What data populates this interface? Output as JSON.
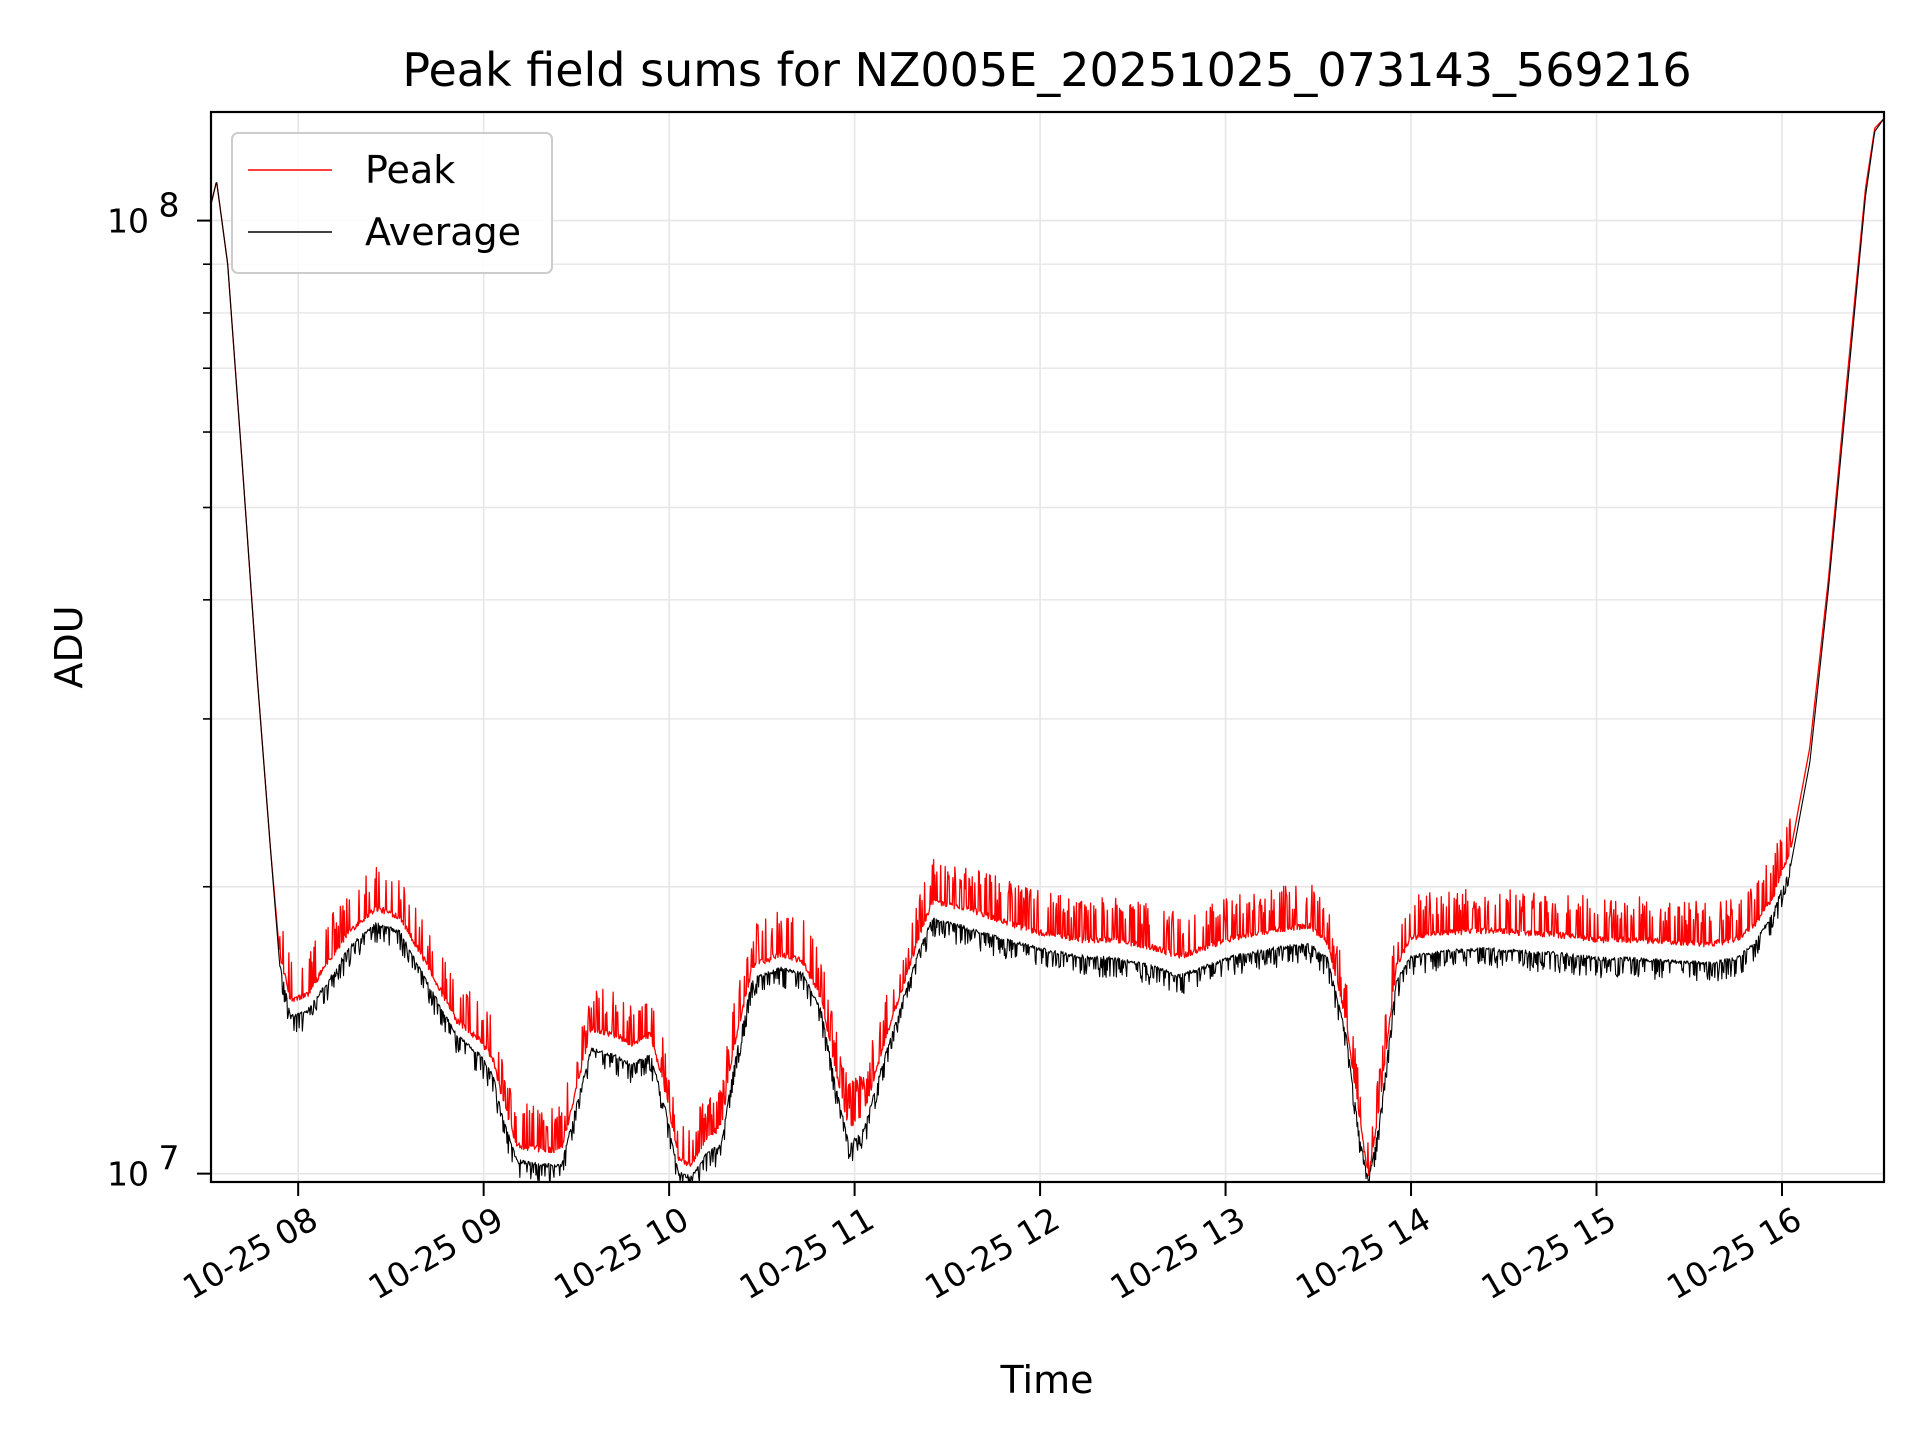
{
  "chart_data": {
    "type": "line",
    "title": "Peak field sums for NZ005E_20251025_073143_569216",
    "xlabel": "Time",
    "ylabel": "ADU",
    "yscale": "log",
    "ylim": [
      9800000,
      130000000
    ],
    "xlim_hours": [
      7.53,
      16.55
    ],
    "grid": true,
    "legend_position": "upper-left",
    "x_ticks": [
      {
        "label": "10-25 08",
        "hour": 8
      },
      {
        "label": "10-25 09",
        "hour": 9
      },
      {
        "label": "10-25 10",
        "hour": 10
      },
      {
        "label": "10-25 11",
        "hour": 11
      },
      {
        "label": "10-25 12",
        "hour": 12
      },
      {
        "label": "10-25 13",
        "hour": 13
      },
      {
        "label": "10-25 14",
        "hour": 14
      },
      {
        "label": "10-25 15",
        "hour": 15
      },
      {
        "label": "10-25 16",
        "hour": 16
      }
    ],
    "y_ticks": [
      {
        "base": "10",
        "exp": "7",
        "value": 10000000
      },
      {
        "base": "10",
        "exp": "8",
        "value": 100000000
      }
    ],
    "series": [
      {
        "name": "Peak",
        "color": "#ff0000",
        "noise_ratio": 1.11,
        "points": [
          [
            7.53,
            104000000
          ],
          [
            7.56,
            110000000
          ],
          [
            7.62,
            90000000
          ],
          [
            7.7,
            55000000
          ],
          [
            7.78,
            33000000
          ],
          [
            7.85,
            22000000
          ],
          [
            7.9,
            17000000
          ],
          [
            7.96,
            15200000
          ],
          [
            8.05,
            15400000
          ],
          [
            8.15,
            16600000
          ],
          [
            8.28,
            18000000
          ],
          [
            8.42,
            19000000
          ],
          [
            8.55,
            18600000
          ],
          [
            8.7,
            16500000
          ],
          [
            8.85,
            14500000
          ],
          [
            8.98,
            13800000
          ],
          [
            9.05,
            13200000
          ],
          [
            9.1,
            12000000
          ],
          [
            9.18,
            10700000
          ],
          [
            9.32,
            10600000
          ],
          [
            9.42,
            10600000
          ],
          [
            9.5,
            12300000
          ],
          [
            9.58,
            14200000
          ],
          [
            9.7,
            14000000
          ],
          [
            9.8,
            13700000
          ],
          [
            9.9,
            14000000
          ],
          [
            9.98,
            12200000
          ],
          [
            10.05,
            10400000
          ],
          [
            10.12,
            10200000
          ],
          [
            10.2,
            10900000
          ],
          [
            10.28,
            11200000
          ],
          [
            10.35,
            13600000
          ],
          [
            10.45,
            16500000
          ],
          [
            10.6,
            17000000
          ],
          [
            10.72,
            16700000
          ],
          [
            10.82,
            15300000
          ],
          [
            10.9,
            12800000
          ],
          [
            10.97,
            11200000
          ],
          [
            11.05,
            11600000
          ],
          [
            11.15,
            13500000
          ],
          [
            11.25,
            15500000
          ],
          [
            11.35,
            17800000
          ],
          [
            11.42,
            19300000
          ],
          [
            11.6,
            19000000
          ],
          [
            11.8,
            18400000
          ],
          [
            12.0,
            17900000
          ],
          [
            12.2,
            17600000
          ],
          [
            12.4,
            17600000
          ],
          [
            12.6,
            17300000
          ],
          [
            12.75,
            16900000
          ],
          [
            12.9,
            17300000
          ],
          [
            13.05,
            17700000
          ],
          [
            13.25,
            18000000
          ],
          [
            13.45,
            18200000
          ],
          [
            13.55,
            17500000
          ],
          [
            13.65,
            14500000
          ],
          [
            13.72,
            11500000
          ],
          [
            13.77,
            9900000
          ],
          [
            13.83,
            11800000
          ],
          [
            13.92,
            16500000
          ],
          [
            14.0,
            17700000
          ],
          [
            14.2,
            17900000
          ],
          [
            14.4,
            18000000
          ],
          [
            14.6,
            17900000
          ],
          [
            14.8,
            17800000
          ],
          [
            15.0,
            17600000
          ],
          [
            15.2,
            17600000
          ],
          [
            15.4,
            17500000
          ],
          [
            15.6,
            17400000
          ],
          [
            15.75,
            17600000
          ],
          [
            15.85,
            18200000
          ],
          [
            15.95,
            19500000
          ],
          [
            16.05,
            22000000
          ],
          [
            16.15,
            28000000
          ],
          [
            16.25,
            42000000
          ],
          [
            16.35,
            68000000
          ],
          [
            16.45,
            108000000
          ],
          [
            16.5,
            125000000
          ],
          [
            16.55,
            128000000
          ]
        ]
      },
      {
        "name": "Average",
        "color": "#000000",
        "noise_ratio": 0.985,
        "points": [
          [
            7.53,
            104000000
          ],
          [
            7.56,
            110000000
          ],
          [
            7.62,
            90000000
          ],
          [
            7.7,
            55000000
          ],
          [
            7.78,
            33000000
          ],
          [
            7.85,
            22000000
          ],
          [
            7.9,
            16600000
          ],
          [
            7.96,
            14600000
          ],
          [
            8.05,
            14800000
          ],
          [
            8.15,
            15800000
          ],
          [
            8.28,
            17300000
          ],
          [
            8.42,
            18300000
          ],
          [
            8.55,
            17900000
          ],
          [
            8.7,
            15800000
          ],
          [
            8.85,
            14000000
          ],
          [
            8.98,
            13300000
          ],
          [
            9.05,
            12700000
          ],
          [
            9.1,
            11500000
          ],
          [
            9.18,
            10300000
          ],
          [
            9.32,
            10200000
          ],
          [
            9.42,
            10200000
          ],
          [
            9.5,
            11800000
          ],
          [
            9.58,
            13500000
          ],
          [
            9.7,
            13300000
          ],
          [
            9.8,
            13000000
          ],
          [
            9.9,
            13300000
          ],
          [
            9.98,
            11700000
          ],
          [
            10.05,
            10000000
          ],
          [
            10.12,
            9900000
          ],
          [
            10.2,
            10500000
          ],
          [
            10.28,
            10700000
          ],
          [
            10.35,
            13000000
          ],
          [
            10.45,
            16000000
          ],
          [
            10.6,
            16400000
          ],
          [
            10.72,
            16200000
          ],
          [
            10.82,
            14800000
          ],
          [
            10.9,
            12300000
          ],
          [
            10.97,
            10700000
          ],
          [
            11.05,
            11100000
          ],
          [
            11.15,
            13000000
          ],
          [
            11.25,
            15000000
          ],
          [
            11.35,
            17200000
          ],
          [
            11.42,
            18500000
          ],
          [
            11.6,
            18100000
          ],
          [
            11.8,
            17600000
          ],
          [
            12.0,
            17200000
          ],
          [
            12.2,
            16900000
          ],
          [
            12.4,
            16800000
          ],
          [
            12.6,
            16500000
          ],
          [
            12.75,
            16100000
          ],
          [
            12.9,
            16500000
          ],
          [
            13.05,
            16900000
          ],
          [
            13.25,
            17200000
          ],
          [
            13.45,
            17400000
          ],
          [
            13.55,
            16800000
          ],
          [
            13.65,
            14000000
          ],
          [
            13.72,
            11000000
          ],
          [
            13.77,
            9800000
          ],
          [
            13.83,
            11300000
          ],
          [
            13.92,
            15900000
          ],
          [
            14.0,
            16900000
          ],
          [
            14.2,
            17100000
          ],
          [
            14.4,
            17200000
          ],
          [
            14.6,
            17100000
          ],
          [
            14.8,
            17000000
          ],
          [
            15.0,
            16800000
          ],
          [
            15.2,
            16800000
          ],
          [
            15.4,
            16700000
          ],
          [
            15.6,
            16600000
          ],
          [
            15.75,
            16800000
          ],
          [
            15.85,
            17400000
          ],
          [
            15.95,
            18700000
          ],
          [
            16.05,
            21200000
          ],
          [
            16.15,
            27000000
          ],
          [
            16.25,
            41000000
          ],
          [
            16.35,
            66000000
          ],
          [
            16.45,
            106000000
          ],
          [
            16.5,
            124000000
          ],
          [
            16.55,
            128000000
          ]
        ]
      }
    ]
  }
}
